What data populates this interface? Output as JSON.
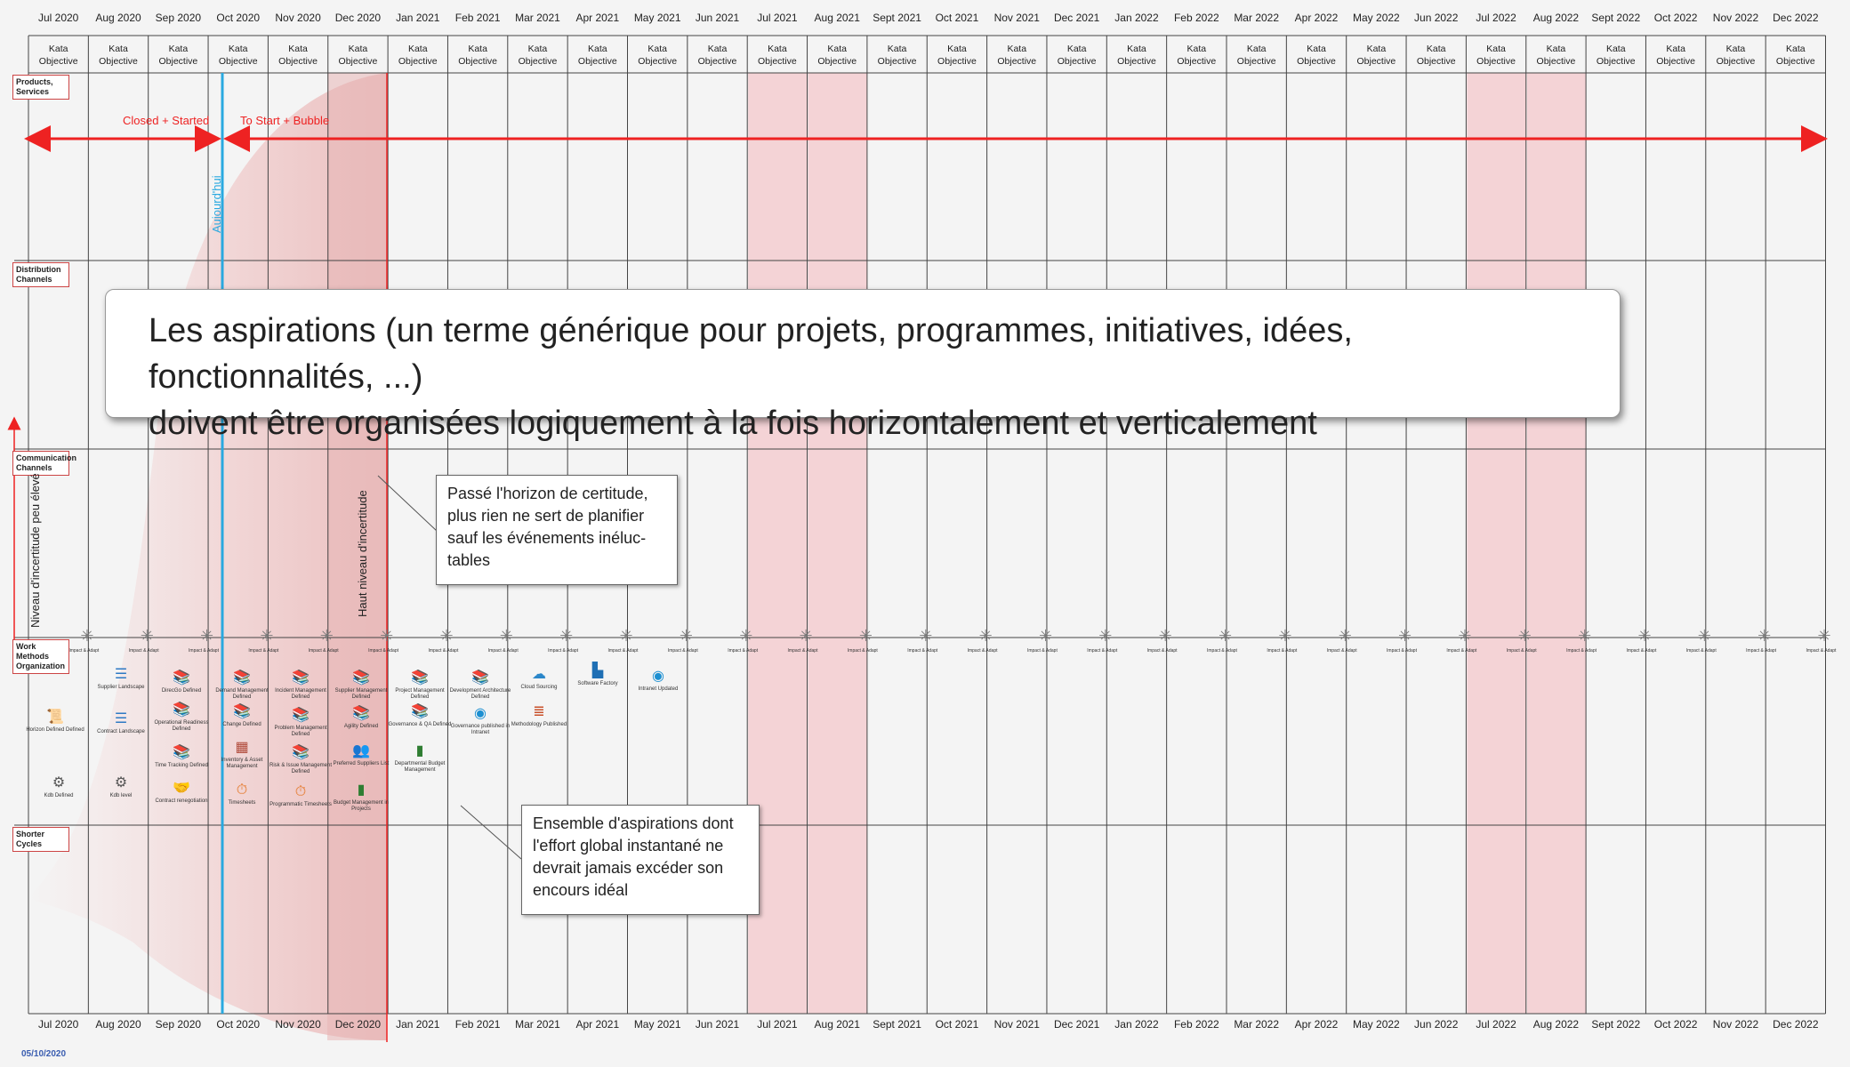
{
  "months": [
    "Jul 2020",
    "Aug 2020",
    "Sep 2020",
    "Oct 2020",
    "Nov 2020",
    "Dec 2020",
    "Jan 2021",
    "Feb 2021",
    "Mar 2021",
    "Apr 2021",
    "May 2021",
    "Jun 2021",
    "Jul 2021",
    "Aug 2021",
    "Sept 2021",
    "Oct 2021",
    "Nov 2021",
    "Dec 2021",
    "Jan 2022",
    "Feb 2022",
    "Mar 2022",
    "Apr 2022",
    "May 2022",
    "Jun 2022",
    "Jul 2022",
    "Aug 2022",
    "Sept 2022",
    "Oct 2022",
    "Nov 2022",
    "Dec 2022"
  ],
  "kata_label": [
    "Kata",
    "Objective"
  ],
  "highlighted_months": [
    "Jul 2021",
    "Aug 2021",
    "Jul 2022",
    "Aug 2022"
  ],
  "rows": [
    "Products, Services",
    "Distribution Channels",
    "Communication Channels",
    "Work Methods Organization",
    "Shorter Cycles"
  ],
  "arrow_labels": {
    "left": "Closed + Started",
    "right": "To Start + Bubble"
  },
  "today_label": "Aujourd'hui",
  "uncertainty_high": "Haut niveau d'incertitude",
  "uncertainty_low": "Niveau d'incertitude peu élevé",
  "main_message": [
    "Les aspirations (un terme générique pour projets, programmes, initiatives, idées, fonctionnalités, ...)",
    "doivent être organisées logiquement à la fois horizontalement et verticalement"
  ],
  "callout_horizon": [
    "Passé l'horizon de certitude,",
    "plus rien ne sert de planifier",
    "sauf les événements inéluc-",
    "tables"
  ],
  "callout_wip": [
    "Ensemble d'aspirations dont",
    "l'effort global instantané ne",
    "devrait jamais excéder son",
    "encours idéal"
  ],
  "impact_label": "Impact & Adapt",
  "items": [
    {
      "label": "Horizon Defined Defined",
      "icon": "scroll-icon"
    },
    {
      "label": "Kdb Defined",
      "icon": "gears-icon"
    },
    {
      "label": "Supplier Landscape",
      "icon": "list-icon"
    },
    {
      "label": "Contract Landscape",
      "icon": "list-icon"
    },
    {
      "label": "Kdb level",
      "icon": "gears-icon"
    },
    {
      "label": "DirecGo Defined",
      "icon": "book-icon"
    },
    {
      "label": "Operational Readiness Defined",
      "icon": "book-icon"
    },
    {
      "label": "Time Tracking Defined",
      "icon": "book-icon"
    },
    {
      "label": "Contract renegotiation",
      "icon": "handshake-icon"
    },
    {
      "label": "Demand Management Defined",
      "icon": "book-icon"
    },
    {
      "label": "Change Defined",
      "icon": "book-icon"
    },
    {
      "label": "Inventory & Asset Management",
      "icon": "shelves-icon"
    },
    {
      "label": "Timesheets",
      "icon": "clock-icon"
    },
    {
      "label": "Incident Management Defined",
      "icon": "book-icon"
    },
    {
      "label": "Problem Management Defined",
      "icon": "book-icon"
    },
    {
      "label": "Risk & Issue Management Defined",
      "icon": "book-icon"
    },
    {
      "label": "Programmatic Timesheets",
      "icon": "clock-icon"
    },
    {
      "label": "Supplier Management Defined",
      "icon": "book-icon"
    },
    {
      "label": "Agility Defined",
      "icon": "book-icon"
    },
    {
      "label": "Preferred Suppliers List",
      "icon": "people-icon"
    },
    {
      "label": "Budget Management in Projects",
      "icon": "chart-icon"
    },
    {
      "label": "Project Management Defined",
      "icon": "book-icon"
    },
    {
      "label": "Governance & QA Defined",
      "icon": "book-icon"
    },
    {
      "label": "Departmental Budget Management",
      "icon": "chart-icon"
    },
    {
      "label": "Development Architecture Defined",
      "icon": "book-icon"
    },
    {
      "label": "Governance published in Intranet",
      "icon": "globe-icon"
    },
    {
      "label": "Cloud Sourcing",
      "icon": "cloud-icon"
    },
    {
      "label": "Methodology Published",
      "icon": "books-icon"
    },
    {
      "label": "Software Factory",
      "icon": "factory-icon"
    },
    {
      "label": "Intranet Updated",
      "icon": "globe-icon"
    }
  ],
  "footer_date": "05/10/2020"
}
